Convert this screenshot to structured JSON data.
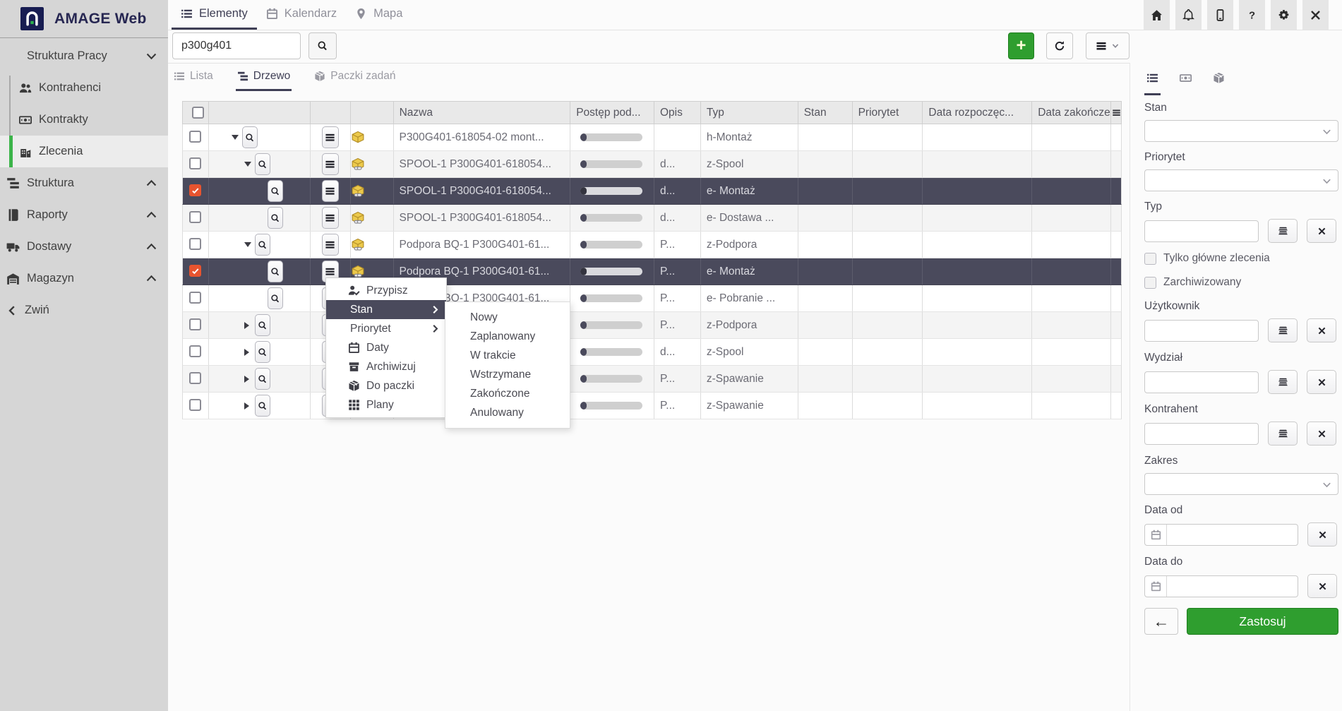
{
  "app": {
    "title": "AMAGE Web"
  },
  "colors": {
    "accent_green": "#2f9e2f",
    "sidebar_active_green": "#3cb44a",
    "selected_row": "#4a4a5c",
    "checked_checkbox": "#e8542f",
    "active_tab": "#3f3f55"
  },
  "sidebar": {
    "items": [
      {
        "id": "struktura-pracy",
        "label": "Struktura Pracy",
        "icon": "building-icon",
        "type": "section",
        "chevron": "down",
        "children": [
          {
            "id": "kontrahenci",
            "label": "Kontrahenci",
            "icon": "people-icon",
            "active": false
          },
          {
            "id": "kontrakty",
            "label": "Kontrakty",
            "icon": "banknote-icon",
            "active": false
          },
          {
            "id": "zlecenia",
            "label": "Zlecenia",
            "icon": "orders-building-icon",
            "active": true
          }
        ]
      },
      {
        "id": "struktura",
        "label": "Struktura",
        "icon": "tree-icon",
        "type": "section",
        "chevron": "up"
      },
      {
        "id": "raporty",
        "label": "Raporty",
        "icon": "report-icon",
        "type": "section",
        "chevron": "up"
      },
      {
        "id": "dostawy",
        "label": "Dostawy",
        "icon": "truck-icon",
        "type": "section",
        "chevron": "up"
      },
      {
        "id": "magazyn",
        "label": "Magazyn",
        "icon": "warehouse-icon",
        "type": "section",
        "chevron": "up"
      },
      {
        "id": "zwin",
        "label": "Zwiń",
        "icon": "chevron-left-icon",
        "type": "collapse"
      }
    ]
  },
  "navbar": {
    "tabs": [
      {
        "id": "elementy",
        "label": "Elementy",
        "icon": "list-icon",
        "active": true
      },
      {
        "id": "kalendarz",
        "label": "Kalendarz",
        "icon": "calendar-icon",
        "active": false
      },
      {
        "id": "mapa",
        "label": "Mapa",
        "icon": "map-pin-icon",
        "active": false
      }
    ],
    "actions": [
      {
        "id": "home",
        "icon": "home-icon"
      },
      {
        "id": "notifications",
        "icon": "bell-icon"
      },
      {
        "id": "mobile",
        "icon": "mobile-icon"
      },
      {
        "id": "help",
        "icon": "help-icon"
      },
      {
        "id": "settings",
        "icon": "gear-icon"
      },
      {
        "id": "close",
        "icon": "close-icon"
      }
    ]
  },
  "toolbar": {
    "search_value": "p300g401"
  },
  "view_tabs": [
    {
      "id": "lista",
      "label": "Lista",
      "icon": "list-icon",
      "active": false
    },
    {
      "id": "drzewo",
      "label": "Drzewo",
      "icon": "tree-icon",
      "active": true
    },
    {
      "id": "paczki",
      "label": "Paczki zadań",
      "icon": "package-icon",
      "active": false
    }
  ],
  "table": {
    "headers": {
      "nazwa": "Nazwa",
      "postep": "Postęp pod...",
      "opis": "Opis",
      "typ": "Typ",
      "stan": "Stan",
      "priorytet": "Priorytet",
      "data_rozpoczecia": "Data rozpoczęc...",
      "data_zakonczenia": "Data zakończe"
    },
    "rows": [
      {
        "name": "P300G401-618054-02 mont...",
        "progress_pct": 10,
        "opis": "",
        "typ": "h-Montaż",
        "stan": "",
        "priorytet": "",
        "data_rozpoczecia": "",
        "data_zakonczenia": "",
        "level": 0,
        "expander": "expanded",
        "checked": false,
        "selected": false,
        "linked": false
      },
      {
        "name": "SPOOL-1 P300G401-618054...",
        "progress_pct": 10,
        "opis": "d...",
        "typ": "z-Spool",
        "stan": "",
        "priorytet": "",
        "data_rozpoczecia": "",
        "data_zakonczenia": "",
        "level": 1,
        "expander": "expanded",
        "checked": false,
        "selected": false,
        "linked": true
      },
      {
        "name": "SPOOL-1 P300G401-618054...",
        "progress_pct": 10,
        "opis": "d...",
        "typ": "e- Montaż",
        "stan": "",
        "priorytet": "",
        "data_rozpoczecia": "",
        "data_zakonczenia": "",
        "level": 2,
        "expander": "none",
        "checked": true,
        "selected": true,
        "linked": true
      },
      {
        "name": "SPOOL-1 P300G401-618054...",
        "progress_pct": 10,
        "opis": "d...",
        "typ": "e- Dostawa ...",
        "stan": "",
        "priorytet": "",
        "data_rozpoczecia": "",
        "data_zakonczenia": "",
        "level": 2,
        "expander": "none",
        "checked": false,
        "selected": false,
        "linked": true
      },
      {
        "name": "Podpora BQ-1 P300G401-61...",
        "progress_pct": 10,
        "opis": "P...",
        "typ": "z-Podpora",
        "stan": "",
        "priorytet": "",
        "data_rozpoczecia": "",
        "data_zakonczenia": "",
        "level": 1,
        "expander": "expanded",
        "checked": false,
        "selected": false,
        "linked": true
      },
      {
        "name": "Podpora BQ-1 P300G401-61...",
        "progress_pct": 10,
        "opis": "P...",
        "typ": "e- Montaż",
        "stan": "",
        "priorytet": "",
        "data_rozpoczecia": "",
        "data_zakonczenia": "",
        "level": 2,
        "expander": "none",
        "checked": true,
        "selected": true,
        "linked": true
      },
      {
        "name": "Podpora BQ-1 P300G401-61...",
        "progress_pct": 10,
        "opis": "P...",
        "typ": "e- Pobranie ...",
        "stan": "",
        "priorytet": "",
        "data_rozpoczecia": "",
        "data_zakonczenia": "",
        "level": 2,
        "expander": "none",
        "checked": false,
        "selected": false,
        "linked": true
      },
      {
        "name": "",
        "progress_pct": 10,
        "opis": "P...",
        "typ": "z-Podpora",
        "stan": "",
        "priorytet": "",
        "data_rozpoczecia": "",
        "data_zakonczenia": "",
        "level": 1,
        "expander": "collapsed",
        "checked": false,
        "selected": false,
        "linked": true
      },
      {
        "name": "",
        "progress_pct": 10,
        "opis": "d...",
        "typ": "z-Spool",
        "stan": "",
        "priorytet": "",
        "data_rozpoczecia": "",
        "data_zakonczenia": "",
        "level": 1,
        "expander": "collapsed",
        "checked": false,
        "selected": false,
        "linked": true
      },
      {
        "name": "",
        "progress_pct": 10,
        "opis": "P...",
        "typ": "z-Spawanie",
        "stan": "",
        "priorytet": "",
        "data_rozpoczecia": "",
        "data_zakonczenia": "",
        "level": 1,
        "expander": "collapsed",
        "checked": false,
        "selected": false,
        "linked": true
      },
      {
        "name": "",
        "progress_pct": 10,
        "opis": "P...",
        "typ": "z-Spawanie",
        "stan": "",
        "priorytet": "",
        "data_rozpoczecia": "",
        "data_zakonczenia": "",
        "level": 1,
        "expander": "collapsed",
        "checked": false,
        "selected": false,
        "linked": true
      }
    ]
  },
  "context_menu": {
    "items": [
      {
        "id": "przypisz",
        "label": "Przypisz",
        "icon": "assign-user-icon",
        "submenu": false,
        "highlighted": false
      },
      {
        "id": "stan",
        "label": "Stan",
        "icon": "",
        "submenu": true,
        "highlighted": true
      },
      {
        "id": "priorytet",
        "label": "Priorytet",
        "icon": "",
        "submenu": true,
        "highlighted": false
      },
      {
        "id": "daty",
        "label": "Daty",
        "icon": "calendar-icon",
        "submenu": false,
        "highlighted": false
      },
      {
        "id": "archiwizuj",
        "label": "Archiwizuj",
        "icon": "archive-icon",
        "submenu": false,
        "highlighted": false
      },
      {
        "id": "do-paczki",
        "label": "Do paczki",
        "icon": "package-icon",
        "submenu": false,
        "highlighted": false
      },
      {
        "id": "plany",
        "label": "Plany",
        "icon": "grid-icon",
        "submenu": false,
        "highlighted": false
      }
    ],
    "submenu_items": [
      {
        "id": "nowy",
        "label": "Nowy"
      },
      {
        "id": "zaplanowany",
        "label": "Zaplanowany"
      },
      {
        "id": "w-trakcie",
        "label": "W trakcie"
      },
      {
        "id": "wstrzymane",
        "label": "Wstrzymane"
      },
      {
        "id": "zakonczone",
        "label": "Zakończone"
      },
      {
        "id": "anulowany",
        "label": "Anulowany"
      }
    ]
  },
  "filter_panel": {
    "tabs": [
      {
        "id": "filters-list",
        "icon": "list-icon",
        "active": true
      },
      {
        "id": "filters-contracts",
        "icon": "banknote-icon",
        "active": false
      },
      {
        "id": "filters-packages",
        "icon": "package-icon",
        "active": false
      }
    ],
    "fields": [
      {
        "id": "stan",
        "label": "Stan",
        "kind": "select",
        "value": ""
      },
      {
        "id": "priorytet",
        "label": "Priorytet",
        "kind": "select",
        "value": ""
      },
      {
        "id": "typ",
        "label": "Typ",
        "kind": "lookup",
        "value": ""
      },
      {
        "id": "tylko-glowne",
        "label": "Tylko główne zlecenia",
        "kind": "checkbox",
        "checked": false
      },
      {
        "id": "zarchiwizowany",
        "label": "Zarchiwizowany",
        "kind": "checkbox",
        "checked": false
      },
      {
        "id": "uzytkownik",
        "label": "Użytkownik",
        "kind": "lookup",
        "value": ""
      },
      {
        "id": "wydzial",
        "label": "Wydział",
        "kind": "lookup",
        "value": ""
      },
      {
        "id": "kontrahent",
        "label": "Kontrahent",
        "kind": "lookup",
        "value": ""
      },
      {
        "id": "zakres",
        "label": "Zakres",
        "kind": "select",
        "value": ""
      },
      {
        "id": "data-od",
        "label": "Data od",
        "kind": "date",
        "value": ""
      },
      {
        "id": "data-do",
        "label": "Data do",
        "kind": "date",
        "value": ""
      }
    ],
    "back_label": "←",
    "apply_label": "Zastosuj"
  }
}
